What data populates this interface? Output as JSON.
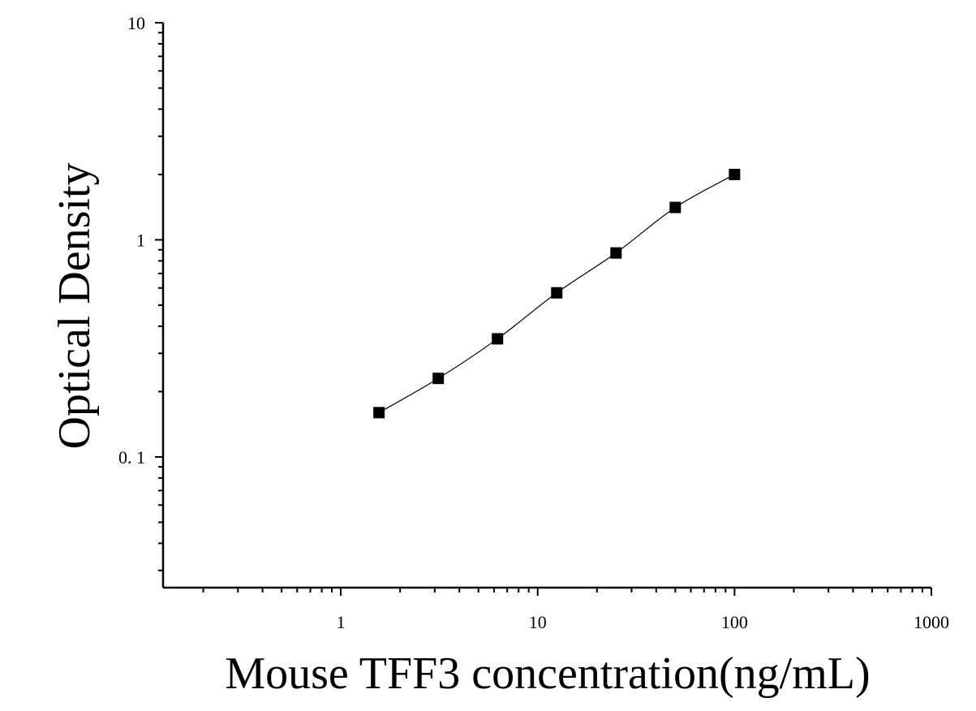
{
  "chart_data": {
    "type": "scatter",
    "title": "",
    "xlabel": "Mouse TFF3 concentration(ng/mL)",
    "ylabel": "Optical Density",
    "x_scale": "log",
    "y_scale": "log",
    "xlim": [
      0.125,
      1000
    ],
    "ylim": [
      0.025,
      10
    ],
    "x_ticks": [
      1,
      10,
      100,
      1000
    ],
    "x_tick_labels": [
      "1",
      "10",
      "100",
      "1000"
    ],
    "y_ticks": [
      0.1,
      1,
      10
    ],
    "y_tick_labels": [
      "0. 1",
      "1",
      "10"
    ],
    "grid": false,
    "legend": "none",
    "series": [
      {
        "x": [
          1.5625,
          3.125,
          6.25,
          12.5,
          25,
          50,
          100
        ],
        "y": [
          0.16,
          0.23,
          0.35,
          0.57,
          0.87,
          1.41,
          2.0
        ],
        "fit": "smooth curve"
      }
    ],
    "colors": {
      "marker": "#000000",
      "line": "#000000",
      "axis": "#000000"
    }
  }
}
